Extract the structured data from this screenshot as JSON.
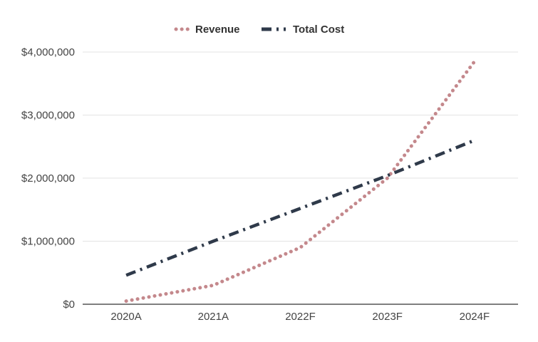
{
  "chart_data": {
    "type": "line",
    "title": "",
    "xlabel": "",
    "ylabel": "",
    "categories": [
      "2020A",
      "2021A",
      "2022F",
      "2023F",
      "2024F"
    ],
    "series": [
      {
        "name": "Revenue",
        "values": [
          50000,
          300000,
          900000,
          2000000,
          3850000
        ],
        "color": "#c4888c",
        "style": "dotted"
      },
      {
        "name": "Total Cost",
        "values": [
          460000,
          1000000,
          1520000,
          2040000,
          2600000
        ],
        "color": "#2f3a4a",
        "style": "dash-dot"
      }
    ],
    "ylim": [
      0,
      4000000
    ],
    "yticks": [
      0,
      1000000,
      2000000,
      3000000,
      4000000
    ],
    "ytick_labels": [
      "$0",
      "$1,000,000",
      "$2,000,000",
      "$3,000,000",
      "$4,000,000"
    ],
    "grid": true,
    "legend": "top-center"
  }
}
